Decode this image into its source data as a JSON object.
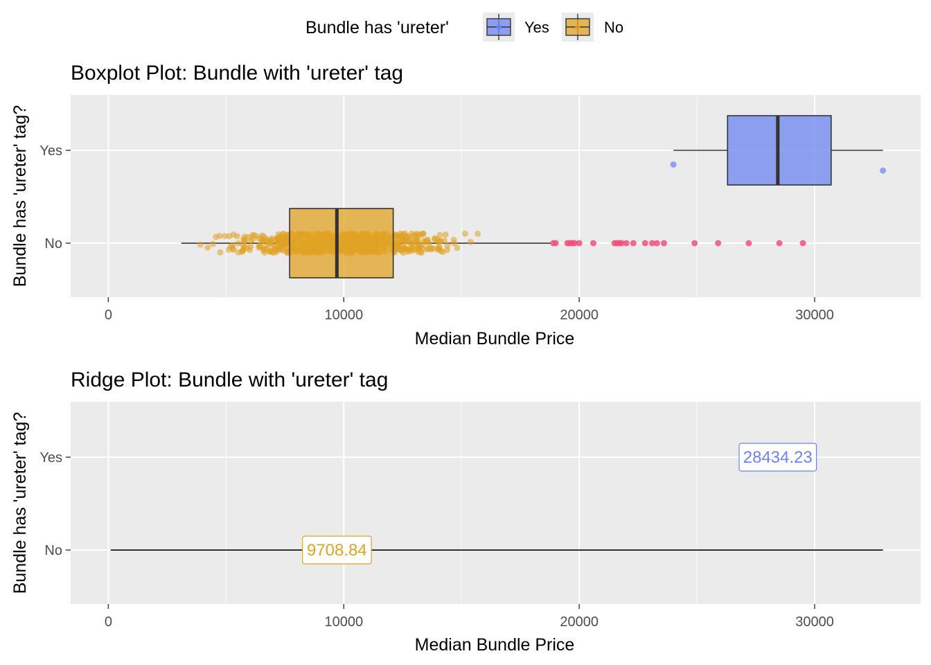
{
  "legend": {
    "title": "Bundle has 'ureter'",
    "items": [
      {
        "label": "Yes",
        "color": "#6b84f0"
      },
      {
        "label": "No",
        "color": "#e0a324"
      }
    ]
  },
  "chart_data": [
    {
      "type": "boxplot",
      "title": "Boxplot Plot: Bundle with 'ureter' tag",
      "xlabel": "Median Bundle Price",
      "ylabel": "Bundle has 'ureter' tag?",
      "xlim": [
        -1600,
        34500
      ],
      "x_ticks": [
        0,
        10000,
        20000,
        30000
      ],
      "x_tick_labels": [
        "0",
        "10000",
        "20000",
        "30000"
      ],
      "categories": [
        "Yes",
        "No"
      ],
      "outlier_color": "#f0507a",
      "boxes": [
        {
          "category": "Yes",
          "color": "#6b84f0",
          "whisker_low": 24000,
          "q1": 26300,
          "median": 28434.23,
          "q3": 30700,
          "whisker_high": 32900,
          "outliers": [
            24000,
            32900
          ],
          "outlier_offsets": [
            -0.07,
            -0.1
          ]
        },
        {
          "category": "No",
          "color": "#e0a324",
          "whisker_low": 3100,
          "q1": 7700,
          "median": 9708.84,
          "q3": 12100,
          "whisker_high": 18800,
          "jitter_range": [
            3100,
            16500
          ],
          "outliers": [
            18900,
            19000,
            19500,
            19600,
            19700,
            19800,
            20000,
            20600,
            21500,
            21600,
            21700,
            21800,
            22000,
            22300,
            22800,
            23100,
            23300,
            23600,
            24900,
            25900,
            27200,
            28500,
            29500
          ]
        }
      ]
    },
    {
      "type": "ridge",
      "title": "Ridge Plot: Bundle with 'ureter' tag",
      "xlabel": "Median Bundle Price",
      "ylabel": "Bundle has 'ureter' tag?",
      "xlim": [
        -1600,
        34500
      ],
      "x_ticks": [
        0,
        10000,
        20000,
        30000
      ],
      "x_tick_labels": [
        "0",
        "10000",
        "20000",
        "30000"
      ],
      "categories": [
        "Yes",
        "No"
      ],
      "baseline": {
        "category": "No",
        "from": 100,
        "to": 32900
      },
      "labels": [
        {
          "category": "Yes",
          "x": 28434.23,
          "text": "28434.23",
          "color": "#6b84f0"
        },
        {
          "category": "No",
          "x": 9708.84,
          "text": "9708.84",
          "color": "#e0a324"
        }
      ]
    }
  ]
}
